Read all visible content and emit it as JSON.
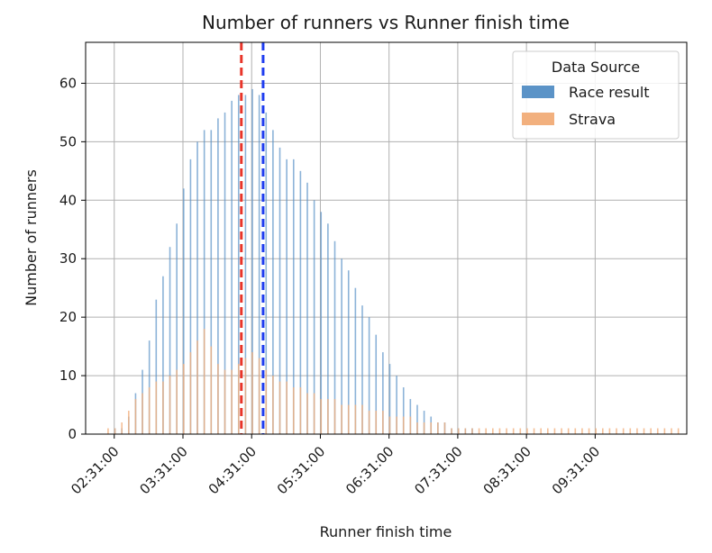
{
  "chart_data": {
    "type": "bar",
    "title": "Number of runners vs Runner finish time",
    "xlabel": "Runner finish time",
    "ylabel": "Number of runners",
    "x_ticks": [
      "02:31:00",
      "03:31:00",
      "04:31:00",
      "05:31:00",
      "06:31:00",
      "07:31:00",
      "08:31:00",
      "09:31:00"
    ],
    "x_tick_minutes": [
      151,
      211,
      271,
      331,
      391,
      451,
      511,
      571
    ],
    "xlim_minutes": [
      126,
      651
    ],
    "y_ticks": [
      0,
      10,
      20,
      30,
      40,
      50,
      60
    ],
    "ylim": [
      0,
      67
    ],
    "grid": true,
    "legend": {
      "title": "Data Source",
      "placement": "top-right",
      "entries": [
        "Race result",
        "Strava"
      ]
    },
    "vlines": [
      {
        "x_minutes": 262,
        "color": "#e8352a",
        "style": "dashed"
      },
      {
        "x_minutes": 281,
        "color": "#1f3df0",
        "style": "dashed"
      }
    ],
    "bin_width_minutes": 1.5,
    "series": [
      {
        "name": "Race result",
        "color": "#5b93c7",
        "x_minutes": [
          151,
          157,
          163,
          169,
          175,
          181,
          187,
          193,
          199,
          205,
          211,
          217,
          223,
          229,
          235,
          241,
          247,
          253,
          259,
          265,
          271,
          277,
          283,
          289,
          295,
          301,
          307,
          313,
          319,
          325,
          331,
          337,
          343,
          349,
          355,
          361,
          367,
          373,
          379,
          385,
          391,
          397,
          403,
          409,
          415,
          421,
          427,
          433,
          439,
          445,
          451,
          457,
          463
        ],
        "values": [
          1,
          1,
          3,
          7,
          11,
          16,
          23,
          27,
          32,
          36,
          42,
          47,
          50,
          52,
          52,
          54,
          55,
          57,
          58,
          58,
          59,
          58,
          55,
          52,
          49,
          47,
          47,
          45,
          43,
          40,
          38,
          36,
          33,
          30,
          28,
          25,
          22,
          20,
          17,
          14,
          12,
          10,
          8,
          6,
          5,
          4,
          3,
          2,
          2,
          1,
          1,
          1,
          1
        ]
      },
      {
        "name": "Strava",
        "color": "#f2b07e",
        "x_minutes": [
          145,
          151,
          157,
          163,
          169,
          175,
          181,
          187,
          193,
          199,
          205,
          211,
          217,
          223,
          229,
          235,
          241,
          247,
          253,
          259,
          265,
          271,
          277,
          283,
          289,
          295,
          301,
          307,
          313,
          319,
          325,
          331,
          337,
          343,
          349,
          355,
          361,
          367,
          373,
          379,
          385,
          391,
          397,
          403,
          409,
          415,
          421,
          427,
          433,
          439,
          445,
          451,
          457,
          463,
          469,
          475,
          481,
          487,
          493,
          499,
          505,
          511,
          517,
          523,
          529,
          535,
          541,
          547,
          553,
          559,
          565,
          571,
          577,
          583,
          589,
          595,
          601,
          607,
          613,
          619,
          625,
          631,
          637,
          643
        ],
        "values": [
          1,
          1,
          2,
          4,
          6,
          7,
          8,
          9,
          9,
          10,
          11,
          12,
          14,
          16,
          18,
          15,
          12,
          11,
          11,
          12,
          13,
          14,
          13,
          11,
          10,
          9,
          9,
          8,
          8,
          7,
          7,
          6,
          6,
          6,
          5,
          5,
          5,
          5,
          4,
          4,
          4,
          3,
          3,
          3,
          3,
          2,
          2,
          2,
          2,
          2,
          1,
          1,
          1,
          1,
          1,
          1,
          1,
          1,
          1,
          1,
          1,
          1,
          1,
          1,
          1,
          1,
          1,
          1,
          1,
          1,
          1,
          1,
          1,
          1,
          1,
          1,
          1,
          1,
          1,
          1,
          1,
          1,
          1,
          1
        ]
      }
    ]
  }
}
